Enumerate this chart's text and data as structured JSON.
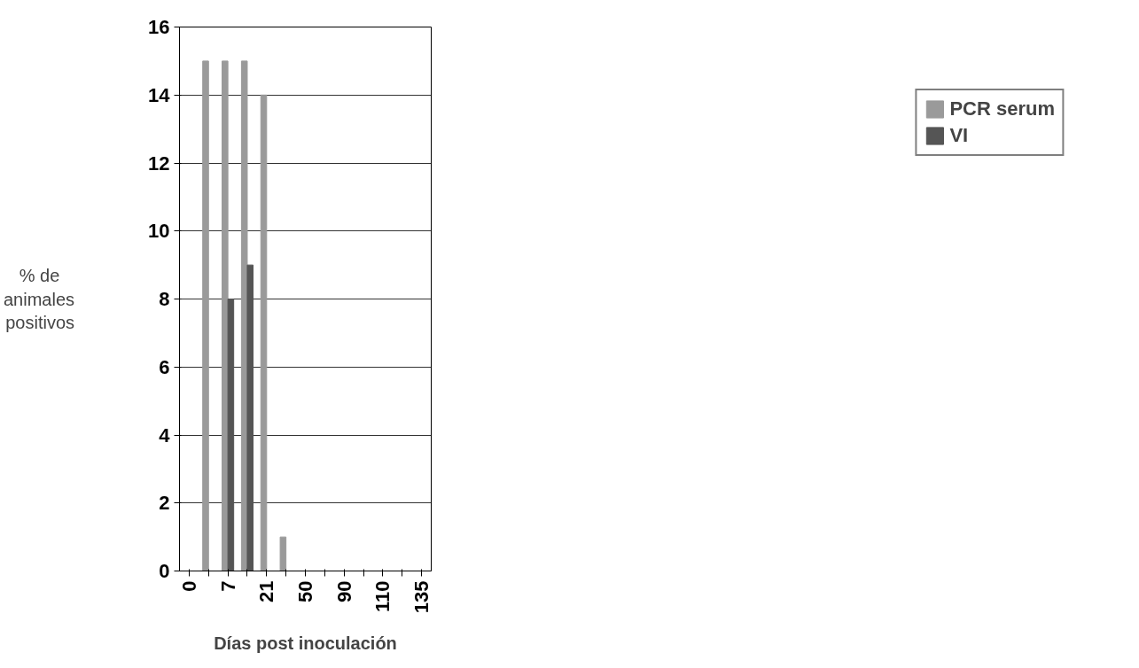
{
  "chart_data": {
    "type": "bar",
    "xlabel": "Días post inoculación",
    "ylabel": "% de animales positivos",
    "categories": [
      "0",
      null,
      "7",
      null,
      "21",
      null,
      "50",
      null,
      "90",
      null,
      "110",
      null,
      "135"
    ],
    "series": [
      {
        "name": "PCR serum",
        "color": "#9a9a9a",
        "values": [
          0,
          15,
          15,
          15,
          14,
          1,
          0,
          0,
          0,
          0,
          0,
          0,
          0
        ]
      },
      {
        "name": "VI",
        "color": "#555555",
        "values": [
          0,
          0,
          8,
          9,
          0,
          0,
          0,
          0,
          0,
          0,
          0,
          0,
          0
        ]
      }
    ],
    "ylim": [
      0,
      16
    ],
    "yticks": [
      0,
      2,
      4,
      6,
      8,
      10,
      12,
      14,
      16
    ],
    "grid": "y",
    "legend": "right"
  }
}
